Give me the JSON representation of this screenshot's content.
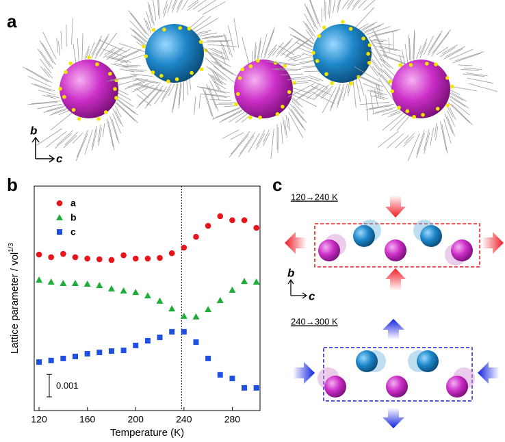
{
  "panels": {
    "a": "a",
    "b": "b",
    "c": "c"
  },
  "panel_a": {
    "axis_b": "b",
    "axis_c": "c"
  },
  "panel_c": {
    "step1": "120→240 K",
    "step2": "240→300 K",
    "axis_b": "b",
    "axis_c": "c"
  },
  "chart_data": {
    "type": "scatter",
    "x_label": "Temperature (K)",
    "y_label": "Lattice parameter / vol",
    "y_label_sup": "1/3",
    "x": [
      120,
      130,
      140,
      150,
      160,
      170,
      180,
      190,
      200,
      210,
      220,
      230,
      240,
      250,
      260,
      270,
      280,
      290,
      300
    ],
    "series": [
      {
        "name": "a",
        "color": "#e8141b",
        "marker": "circle",
        "values": [
          0.00695,
          0.00683,
          0.00698,
          0.00683,
          0.00677,
          0.00674,
          0.00671,
          0.00692,
          0.00677,
          0.00677,
          0.0068,
          0.00701,
          0.00726,
          0.00774,
          0.00823,
          0.00866,
          0.00848,
          0.00848,
          0.00814
        ]
      },
      {
        "name": "b",
        "color": "#1fad3a",
        "marker": "triangle",
        "values": [
          0.00582,
          0.00573,
          0.00567,
          0.00567,
          0.00564,
          0.00558,
          0.00543,
          0.00534,
          0.00527,
          0.00512,
          0.00488,
          0.00454,
          0.00421,
          0.00418,
          0.00451,
          0.00491,
          0.00537,
          0.00576,
          0.00573
        ]
      },
      {
        "name": "c",
        "color": "#1f4fe0",
        "marker": "square",
        "values": [
          0.00216,
          0.00223,
          0.00232,
          0.00241,
          0.00253,
          0.00259,
          0.00265,
          0.00268,
          0.0029,
          0.00311,
          0.00326,
          0.00351,
          0.00351,
          0.00305,
          0.00232,
          0.00159,
          0.00143,
          0.00101,
          0.00101
        ]
      }
    ],
    "xlim": [
      116,
      303
    ],
    "xticks": [
      120,
      160,
      200,
      240,
      280
    ],
    "ylim": [
      0,
      0.01
    ],
    "vline": 238,
    "scale_bar": {
      "value": 0.001,
      "label": "0.001"
    },
    "legend": "upper left"
  }
}
